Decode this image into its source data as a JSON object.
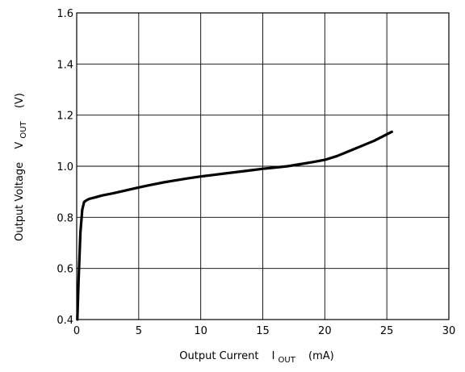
{
  "chart_data": {
    "type": "line",
    "title": "",
    "xlabel": {
      "prefix": "Output Current",
      "symbol": "I",
      "subscript": "OUT",
      "unit": "(mA)"
    },
    "ylabel": {
      "prefix": "Output Voltage",
      "symbol": "V",
      "subscript": "OUT",
      "unit": "(V)"
    },
    "xlim": [
      0,
      30
    ],
    "ylim": [
      0.4,
      1.6
    ],
    "xticks": [
      "0",
      "5",
      "10",
      "15",
      "20",
      "25",
      "30"
    ],
    "yticks": [
      "0.4",
      "0.6",
      "0.8",
      "1.0",
      "1.2",
      "1.4",
      "1.6"
    ],
    "grid": true,
    "colors": {
      "line": "#000000",
      "grid": "#000000",
      "frame": "#000000"
    },
    "series": [
      {
        "x": [
          0.05,
          0.15,
          0.3,
          0.45,
          0.6,
          0.8,
          1.0,
          1.5,
          2,
          3,
          4,
          5,
          6,
          7,
          8,
          9,
          10,
          11,
          12,
          13,
          14,
          15,
          16,
          17,
          18,
          19,
          20,
          21,
          22,
          23,
          24,
          25,
          25.4
        ],
        "y": [
          0.4,
          0.55,
          0.74,
          0.83,
          0.86,
          0.867,
          0.872,
          0.878,
          0.885,
          0.895,
          0.906,
          0.917,
          0.927,
          0.937,
          0.945,
          0.953,
          0.96,
          0.966,
          0.972,
          0.978,
          0.984,
          0.99,
          0.995,
          1.0,
          1.008,
          1.016,
          1.025,
          1.04,
          1.06,
          1.08,
          1.1,
          1.125,
          1.135
        ]
      }
    ]
  }
}
